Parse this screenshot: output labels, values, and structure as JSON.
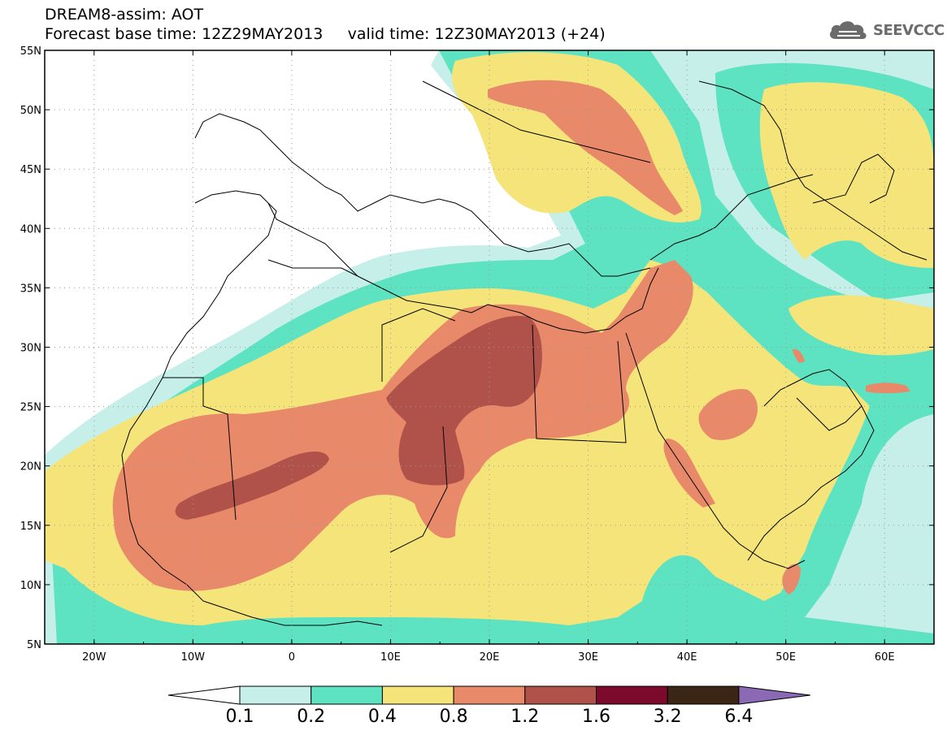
{
  "header": {
    "title_line1": "DREAM8-assim: AOT",
    "title_line2": "Forecast base time: 12Z29MAY2013     valid time: 12Z30MAY2013 (+24)",
    "brand": "SEEVCCC",
    "brand_icon": "cloud-logo-icon"
  },
  "map": {
    "lon_range": [
      -25,
      65
    ],
    "lat_range": [
      5,
      55
    ],
    "lat_labels": [
      "5N",
      "10N",
      "15N",
      "20N",
      "25N",
      "30N",
      "35N",
      "40N",
      "45N",
      "50N",
      "55N"
    ],
    "lon_labels": [
      "20W",
      "10W",
      "0",
      "10E",
      "20E",
      "30E",
      "40E",
      "50E",
      "60E"
    ],
    "grid": "dotted"
  },
  "colorbar": {
    "labels": [
      "0.1",
      "0.2",
      "0.4",
      "0.8",
      "1.2",
      "1.6",
      "3.2",
      "6.4"
    ],
    "colors": [
      "#ffffff",
      "#c5efe8",
      "#5ee3c2",
      "#f5e47a",
      "#e8896a",
      "#b0524a",
      "#7c0a2c",
      "#3b2616",
      "#8c69b4"
    ]
  },
  "palette": {
    "c01": "#c5efe8",
    "c02": "#5ee3c2",
    "c04": "#f5e47a",
    "c08": "#e8896a",
    "c12": "#b0524a"
  }
}
